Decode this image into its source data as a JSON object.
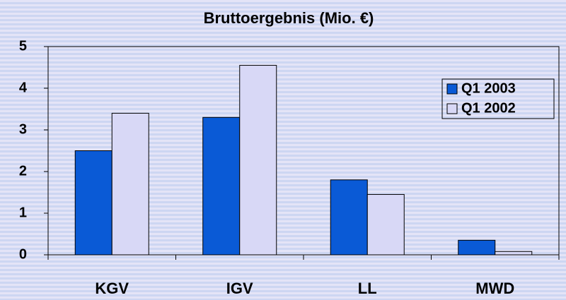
{
  "chart_data": {
    "type": "bar",
    "title": "Bruttoergebnis (Mio. €)",
    "categories": [
      "KGV",
      "IGV",
      "LL",
      "MWD"
    ],
    "series": [
      {
        "name": "Q1 2003",
        "color": "#0a5ad6",
        "values": [
          2.5,
          3.3,
          1.8,
          0.35
        ]
      },
      {
        "name": "Q1 2002",
        "color": "#d8d8f6",
        "values": [
          3.4,
          4.55,
          1.45,
          0.08
        ]
      }
    ],
    "ylim": [
      0,
      5
    ],
    "yticks": [
      0,
      1,
      2,
      3,
      4,
      5
    ],
    "grid": false,
    "legend": "upper right"
  }
}
